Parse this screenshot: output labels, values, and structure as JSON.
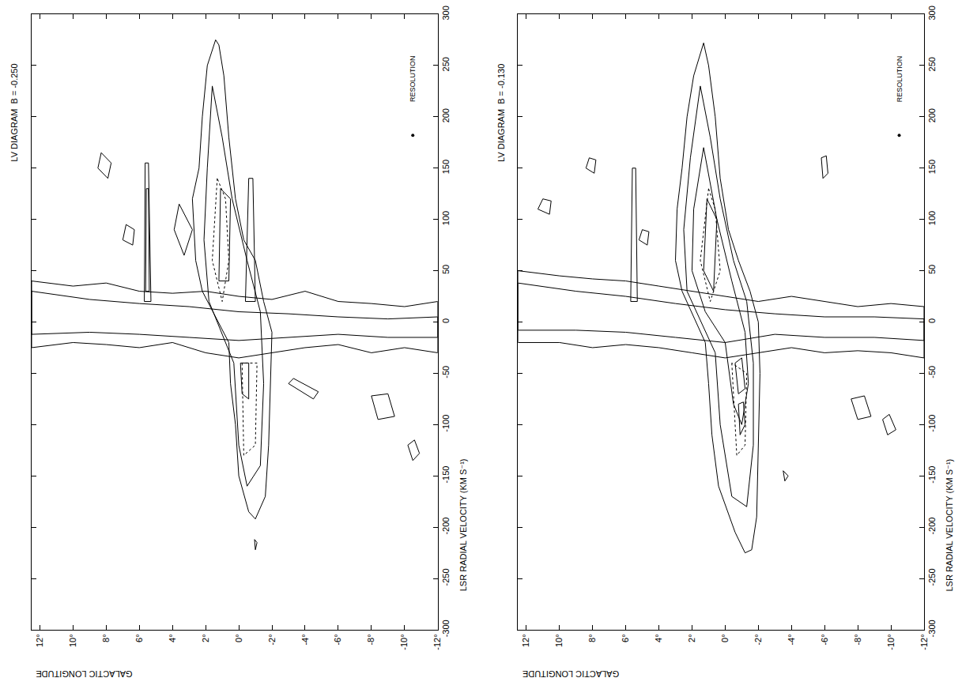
{
  "chart_data": [
    {
      "type": "line",
      "title": "LV DIAGRAM  B = -0.250",
      "x_label": "GALACTIC LONGITUDE",
      "y_label": "LSR RADIAL VELOCITY (KM S⁻¹)",
      "xlim": [
        12.5,
        -12
      ],
      "ylim": [
        -300,
        300
      ],
      "xticks": [
        {
          "value": 12,
          "label": "12°"
        },
        {
          "value": 10,
          "label": "10°"
        },
        {
          "value": 8,
          "label": "8°"
        },
        {
          "value": 6,
          "label": "6°"
        },
        {
          "value": 4,
          "label": "4°"
        },
        {
          "value": 2,
          "label": "2°"
        },
        {
          "value": 0,
          "label": "0°"
        },
        {
          "value": -2,
          "label": "-2°"
        },
        {
          "value": -4,
          "label": "-4°"
        },
        {
          "value": -6,
          "label": "-6°"
        },
        {
          "value": -8,
          "label": "-8°"
        },
        {
          "value": -10,
          "label": "-10°"
        },
        {
          "value": -12,
          "label": "-12°"
        }
      ],
      "yticks": [
        -300,
        -250,
        -200,
        -150,
        -100,
        -50,
        0,
        50,
        100,
        150,
        200,
        250,
        300
      ],
      "grid": false,
      "annotations": [
        {
          "text": "RESOLUTION",
          "x": -10.5,
          "y": 237
        }
      ],
      "series": [
        {
          "line_style": "solid",
          "x": [
            12.5,
            10,
            8,
            6,
            4,
            2,
            0,
            -2,
            -4,
            -6,
            -8,
            -10,
            -12,
            -12,
            -10,
            -8,
            -6,
            -4,
            -2,
            0,
            2,
            4,
            6,
            8,
            10,
            12.5,
            12.5
          ],
          "values": [
            40,
            35,
            38,
            30,
            28,
            30,
            25,
            22,
            30,
            20,
            18,
            15,
            20,
            -30,
            -25,
            -30,
            -22,
            -25,
            -30,
            -35,
            -30,
            -20,
            -25,
            -22,
            -20,
            -25,
            40
          ]
        },
        {
          "line_style": "solid",
          "x": [
            12.5,
            9,
            6,
            3,
            0,
            -3,
            -6,
            -9,
            -12,
            -12,
            -9,
            -6,
            -3,
            0,
            3,
            6,
            9,
            12.5,
            12.5
          ],
          "values": [
            30,
            22,
            18,
            15,
            10,
            8,
            5,
            3,
            5,
            -15,
            -15,
            -12,
            -15,
            -18,
            -15,
            -12,
            -10,
            -12,
            30
          ]
        },
        {
          "line_style": "solid",
          "x": [
            1.4,
            1.9,
            2.2,
            2.4,
            2.8,
            2.6,
            2.2,
            0.6,
            0.5,
            0.2,
            0,
            -0.6,
            -1.0,
            -1.6,
            -1.8,
            -1.9,
            -2.0,
            -1.5,
            -1.0,
            -0.3,
            0.2,
            0.6,
            0.9,
            1.2,
            1.4
          ],
          "values": [
            275,
            250,
            200,
            150,
            120,
            60,
            30,
            -20,
            -60,
            -100,
            -150,
            -185,
            -192,
            -170,
            -120,
            -60,
            -10,
            20,
            60,
            80,
            120,
            180,
            240,
            270,
            275
          ]
        },
        {
          "line_style": "solid",
          "x": [
            1.6,
            1.9,
            2.1,
            1.8,
            0.3,
            0,
            -0.5,
            -1.3,
            -1.5,
            -1.3,
            -0.5,
            0.4,
            1.0,
            1.6
          ],
          "values": [
            230,
            150,
            80,
            20,
            -40,
            -120,
            -160,
            -140,
            -60,
            10,
            60,
            120,
            180,
            230
          ]
        },
        {
          "line_style": "dotted",
          "x": [
            1.3,
            1.6,
            1.0,
            0.6,
            0.8,
            1.3
          ],
          "values": [
            140,
            60,
            20,
            60,
            120,
            140
          ]
        },
        {
          "line_style": "dotted",
          "x": [
            -0.2,
            -0.3,
            -1.0,
            -1.1,
            -0.2
          ],
          "values": [
            -40,
            -130,
            -120,
            -40,
            -40
          ]
        },
        {
          "line_style": "solid",
          "x": [
            1.1,
            1.2,
            0.6,
            0.5,
            1.1
          ],
          "values": [
            130,
            40,
            40,
            120,
            130
          ]
        },
        {
          "line_style": "solid",
          "x": [
            -0.1,
            -0.2,
            -0.6,
            -0.6,
            -0.1
          ],
          "values": [
            -40,
            -70,
            -75,
            -40,
            -40
          ]
        },
        {
          "line_style": "solid",
          "x": [
            5.7,
            5.65,
            5.45,
            5.3,
            5.7
          ],
          "values": [
            20,
            155,
            155,
            20,
            20
          ]
        },
        {
          "line_style": "solid",
          "x": [
            5.62,
            5.58,
            5.45,
            5.4,
            5.62
          ],
          "values": [
            30,
            130,
            130,
            30,
            30
          ]
        },
        {
          "line_style": "solid",
          "x": [
            -0.4,
            -0.6,
            -0.85,
            -1.0,
            -0.4
          ],
          "values": [
            20,
            140,
            140,
            20,
            20
          ]
        },
        {
          "line_style": "solid",
          "x": [
            3.6,
            3.9,
            3.3,
            2.8,
            3.6
          ],
          "values": [
            115,
            90,
            65,
            90,
            115
          ]
        },
        {
          "line_style": "solid",
          "x": [
            8.3,
            8.5,
            7.9,
            7.7,
            8.3
          ],
          "values": [
            165,
            150,
            140,
            155,
            165
          ]
        },
        {
          "line_style": "solid",
          "x": [
            6.8,
            7.0,
            6.4,
            6.3,
            6.8
          ],
          "values": [
            95,
            80,
            75,
            90,
            95
          ]
        },
        {
          "line_style": "solid",
          "x": [
            -8.0,
            -8.4,
            -9.4,
            -9.0,
            -8.0
          ],
          "values": [
            -72,
            -95,
            -92,
            -70,
            -72
          ]
        },
        {
          "line_style": "solid",
          "x": [
            -10.2,
            -10.5,
            -10.9,
            -10.6,
            -10.2
          ],
          "values": [
            -120,
            -135,
            -128,
            -115,
            -120
          ]
        },
        {
          "line_style": "solid",
          "x": [
            -3.0,
            -4.5,
            -4.8,
            -3.3,
            -3.0
          ],
          "values": [
            -60,
            -75,
            -68,
            -55,
            -60
          ]
        },
        {
          "line_style": "solid",
          "x": [
            -0.95,
            -1.0,
            -1.1,
            -0.95
          ],
          "values": [
            -212,
            -222,
            -215,
            -212
          ]
        },
        {
          "marker": "dot",
          "x": [
            -10.5
          ],
          "values": [
            182
          ]
        }
      ]
    },
    {
      "type": "line",
      "title": "LV DIAGRAM  B = -0.130",
      "x_label": "GALACTIC LONGITUDE",
      "y_label": "LSR RADIAL VELOCITY (KM S⁻¹)",
      "xlim": [
        12.5,
        -12
      ],
      "ylim": [
        -300,
        300
      ],
      "xticks": [
        {
          "value": 12,
          "label": "12°"
        },
        {
          "value": 10,
          "label": "10°"
        },
        {
          "value": 8,
          "label": "8°"
        },
        {
          "value": 6,
          "label": "6°"
        },
        {
          "value": 4,
          "label": "4°"
        },
        {
          "value": 2,
          "label": "2°"
        },
        {
          "value": 0,
          "label": "0°"
        },
        {
          "value": -2,
          "label": "-2°"
        },
        {
          "value": -4,
          "label": "-4°"
        },
        {
          "value": -6,
          "label": "-6°"
        },
        {
          "value": -8,
          "label": "-8°"
        },
        {
          "value": -10,
          "label": "-10°"
        },
        {
          "value": -12,
          "label": "-12°"
        }
      ],
      "yticks": [
        -300,
        -250,
        -200,
        -150,
        -100,
        -50,
        0,
        50,
        100,
        150,
        200,
        250,
        300
      ],
      "grid": false,
      "annotations": [
        {
          "text": "RESOLUTION",
          "x": -10.5,
          "y": 237
        }
      ],
      "series": [
        {
          "line_style": "solid",
          "x": [
            12.5,
            10,
            8,
            6,
            4,
            2,
            0,
            -2,
            -4,
            -6,
            -8,
            -10,
            -12,
            -12,
            -10,
            -8,
            -6,
            -4,
            -2,
            0,
            2,
            4,
            6,
            8,
            10,
            12.5,
            12.5
          ],
          "values": [
            50,
            45,
            42,
            40,
            35,
            30,
            25,
            20,
            25,
            20,
            15,
            18,
            15,
            -35,
            -30,
            -28,
            -30,
            -25,
            -30,
            -35,
            -30,
            -25,
            -22,
            -25,
            -20,
            -20,
            50
          ]
        },
        {
          "line_style": "solid",
          "x": [
            12.5,
            9,
            6,
            3,
            0,
            -3,
            -6,
            -9,
            -12,
            -12,
            -9,
            -6,
            -3,
            0,
            3,
            6,
            9,
            12.5,
            12.5
          ],
          "values": [
            38,
            30,
            25,
            18,
            12,
            8,
            5,
            5,
            3,
            -18,
            -15,
            -15,
            -12,
            -20,
            -15,
            -10,
            -8,
            -8,
            38
          ]
        },
        {
          "line_style": "solid",
          "x": [
            1.3,
            1.9,
            2.3,
            2.6,
            2.9,
            3.0,
            2.6,
            1.2,
            1.0,
            0.8,
            0.4,
            -0.6,
            -1.2,
            -1.6,
            -1.9,
            -2.0,
            -2.1,
            -2.0,
            -1.5,
            -0.8,
            -0.2,
            0.3,
            0.6,
            1.0,
            1.3
          ],
          "values": [
            272,
            240,
            200,
            150,
            110,
            60,
            30,
            -20,
            -60,
            -110,
            -160,
            -205,
            -225,
            -222,
            -190,
            -120,
            -50,
            0,
            30,
            60,
            90,
            140,
            200,
            250,
            272
          ]
        },
        {
          "line_style": "solid",
          "x": [
            1.5,
            2.1,
            2.5,
            2.3,
            0.6,
            0.3,
            -0.4,
            -1.3,
            -1.7,
            -1.7,
            -1.3,
            -0.5,
            0.3,
            0.9,
            1.5
          ],
          "values": [
            230,
            160,
            90,
            30,
            -30,
            -100,
            -170,
            -180,
            -120,
            -40,
            20,
            60,
            120,
            180,
            230
          ]
        },
        {
          "line_style": "solid",
          "x": [
            1.3,
            1.9,
            2.0,
            1.2,
            0,
            -0.5,
            -1.0,
            -1.4,
            -1.2,
            -0.4,
            0.5,
            1.3
          ],
          "values": [
            170,
            110,
            50,
            10,
            -20,
            -80,
            -100,
            -60,
            -10,
            40,
            100,
            170
          ]
        },
        {
          "line_style": "dotted",
          "x": [
            1.0,
            1.5,
            0.9,
            0.3,
            0.6,
            1.0
          ],
          "values": [
            130,
            60,
            20,
            50,
            110,
            130
          ]
        },
        {
          "line_style": "dotted",
          "x": [
            -0.4,
            -0.7,
            -1.2,
            -1.3,
            -0.4
          ],
          "values": [
            -40,
            -130,
            -120,
            -50,
            -40
          ]
        },
        {
          "line_style": "solid",
          "x": [
            1.1,
            1.3,
            0.7,
            0.5,
            1.1
          ],
          "values": [
            120,
            50,
            30,
            100,
            120
          ]
        },
        {
          "line_style": "solid",
          "x": [
            -0.6,
            -0.8,
            -1.2,
            -1.0,
            -0.6
          ],
          "values": [
            -40,
            -70,
            -65,
            -35,
            -40
          ]
        },
        {
          "line_style": "solid",
          "x": [
            -0.8,
            -0.9,
            -1.2,
            -1.1,
            -0.8
          ],
          "values": [
            -80,
            -110,
            -100,
            -78,
            -80
          ]
        },
        {
          "line_style": "solid",
          "x": [
            5.7,
            5.6,
            5.4,
            5.3,
            5.7
          ],
          "values": [
            20,
            150,
            150,
            20,
            20
          ]
        },
        {
          "line_style": "solid",
          "x": [
            -7.6,
            -8.0,
            -8.8,
            -8.4,
            -7.6
          ],
          "values": [
            -75,
            -95,
            -92,
            -72,
            -75
          ]
        },
        {
          "line_style": "solid",
          "x": [
            -9.5,
            -9.8,
            -10.3,
            -9.9,
            -9.5
          ],
          "values": [
            -95,
            -110,
            -105,
            -90,
            -95
          ]
        },
        {
          "line_style": "solid",
          "x": [
            -5.8,
            -5.9,
            -6.2,
            -6.1,
            -5.8
          ],
          "values": [
            160,
            140,
            145,
            162,
            160
          ]
        },
        {
          "line_style": "solid",
          "x": [
            8.2,
            8.4,
            7.9,
            7.8,
            8.2
          ],
          "values": [
            160,
            150,
            145,
            158,
            160
          ]
        },
        {
          "line_style": "solid",
          "x": [
            11,
            11.3,
            10.6,
            10.5,
            11
          ],
          "values": [
            120,
            110,
            105,
            118,
            120
          ]
        },
        {
          "line_style": "solid",
          "x": [
            5,
            5.2,
            4.7,
            4.6,
            5
          ],
          "values": [
            90,
            80,
            75,
            88,
            90
          ]
        },
        {
          "line_style": "solid",
          "x": [
            -3.5,
            -3.6,
            -3.8,
            -3.5
          ],
          "values": [
            -145,
            -155,
            -150,
            -145
          ]
        },
        {
          "marker": "dot",
          "x": [
            -10.5
          ],
          "values": [
            182
          ]
        }
      ]
    }
  ]
}
